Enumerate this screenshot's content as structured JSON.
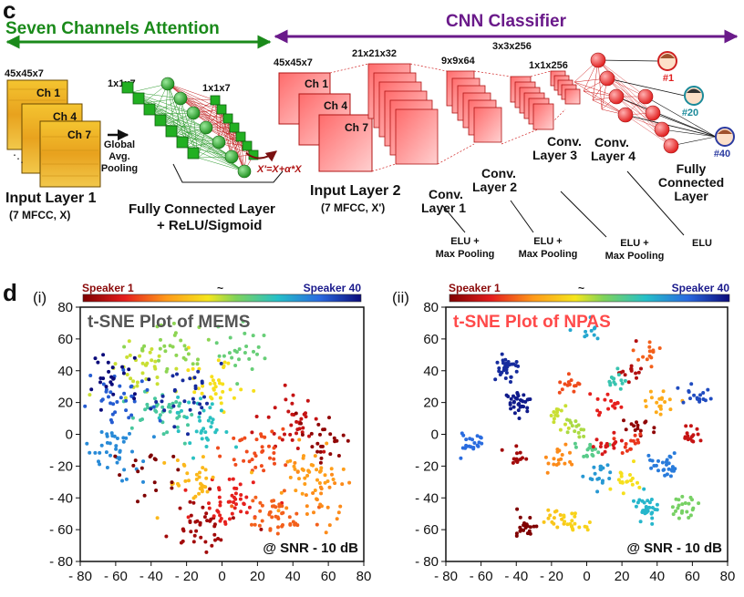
{
  "panel_c": {
    "letter": "c",
    "attention_title": "Seven Channels Attention",
    "classifier_title": "CNN Classifier",
    "input1": {
      "dims": "45x45x7",
      "channels": [
        "Ch 1",
        "Ch 4",
        "Ch 7"
      ],
      "label_line1": "Input Layer 1",
      "label_line2": "(7 MFCC, X)"
    },
    "gap": {
      "line1": "Global",
      "line2": "Avg.",
      "line3": "Pooling"
    },
    "fc_attention": {
      "dims_in": "1x1x7",
      "dims_out": "1x1x7",
      "label_line1": "Fully Connected Layer",
      "label_line2": "+ ReLU/Sigmoid"
    },
    "equation": "X'=X+α*X",
    "input2": {
      "dims": "45x45x7",
      "channels": [
        "Ch 1",
        "Ch 4",
        "Ch 7"
      ],
      "label_line1": "Input Layer 2",
      "label_line2": "(7 MFCC, X')"
    },
    "conv1": {
      "dims": "21x21x32",
      "line1": "Conv.",
      "line2": "Layer 1",
      "activation_line1": "ELU +",
      "activation_line2": "Max Pooling"
    },
    "conv2": {
      "dims": "9x9x64",
      "line1": "Conv.",
      "line2": "Layer 2",
      "activation_line1": "ELU +",
      "activation_line2": "Max Pooling"
    },
    "conv3": {
      "dims": "3x3x256",
      "line1": "Conv.",
      "line2": "Layer 3",
      "activation_line1": "ELU +",
      "activation_line2": "Max Pooling"
    },
    "conv4": {
      "dims": "1x1x256",
      "line1": "Conv.",
      "line2": "Layer 4",
      "activation": "ELU"
    },
    "fc_final": {
      "line1": "Fully",
      "line2": "Connected",
      "line3": "Layer"
    },
    "outputs": [
      "#1",
      "#20",
      "#40"
    ]
  },
  "panel_d": {
    "letter": "d",
    "colorbar_left": "Speaker 1",
    "colorbar_mid": "~",
    "colorbar_right": "Speaker 40",
    "colors": {
      "speaker1": "#8b0a0a",
      "speaker40": "#1a1a8c",
      "mems_title": "#555555",
      "npas_title": "#ff4a4a"
    }
  },
  "chart_data": [
    {
      "type": "scatter",
      "panel": "(i)",
      "title": "t-SNE Plot of MEMS",
      "annotation": "@ SNR - 10 dB",
      "xlim": [
        -80,
        80
      ],
      "ylim": [
        -80,
        80
      ],
      "xticks": [
        "- 80",
        "- 60",
        "- 40",
        "- 20",
        "0",
        "20",
        "40",
        "60",
        "80"
      ],
      "yticks": [
        "80",
        "60",
        "40",
        "20",
        "0",
        "- 20",
        "- 40",
        "- 60",
        "- 80"
      ],
      "color_scale": "speaker 1 (dark red) to speaker 40 (dark blue)",
      "clusters": [
        {
          "speaker": 3,
          "x": -10,
          "y": -58,
          "n": 40
        },
        {
          "speaker": 7,
          "x": 5,
          "y": -45,
          "n": 45
        },
        {
          "speaker": 10,
          "x": 30,
          "y": -50,
          "n": 45
        },
        {
          "speaker": 13,
          "x": 50,
          "y": -25,
          "n": 40
        },
        {
          "speaker": 5,
          "x": 40,
          "y": 8,
          "n": 35
        },
        {
          "speaker": 9,
          "x": 20,
          "y": -12,
          "n": 35
        },
        {
          "speaker": 15,
          "x": -15,
          "y": -30,
          "n": 35
        },
        {
          "speaker": 18,
          "x": -5,
          "y": 30,
          "n": 35
        },
        {
          "speaker": 20,
          "x": -45,
          "y": 40,
          "n": 35
        },
        {
          "speaker": 22,
          "x": -25,
          "y": 55,
          "n": 30
        },
        {
          "speaker": 26,
          "x": -35,
          "y": 12,
          "n": 40
        },
        {
          "speaker": 28,
          "x": -10,
          "y": 5,
          "n": 35
        },
        {
          "speaker": 32,
          "x": -60,
          "y": -10,
          "n": 40
        },
        {
          "speaker": 35,
          "x": -55,
          "y": 25,
          "n": 35
        },
        {
          "speaker": 38,
          "x": -20,
          "y": 25,
          "n": 30
        },
        {
          "speaker": 40,
          "x": -65,
          "y": 35,
          "n": 25
        },
        {
          "speaker": 2,
          "x": 58,
          "y": -2,
          "n": 25
        },
        {
          "speaker": 1,
          "x": -45,
          "y": -25,
          "n": 18
        },
        {
          "speaker": 12,
          "x": 60,
          "y": -40,
          "n": 25
        },
        {
          "speaker": 24,
          "x": 10,
          "y": 50,
          "n": 25
        }
      ]
    },
    {
      "type": "scatter",
      "panel": "(ii)",
      "title": "t-SNE Plot of NPAS",
      "annotation": "@ SNR - 10 dB",
      "xlim": [
        -80,
        80
      ],
      "ylim": [
        -80,
        80
      ],
      "xticks": [
        "- 80",
        "- 60",
        "- 40",
        "- 20",
        "0",
        "20",
        "40",
        "60",
        "80"
      ],
      "yticks": [
        "80",
        "60",
        "40",
        "20",
        "0",
        "- 20",
        "- 40",
        "- 60",
        "- 80"
      ],
      "color_scale": "speaker 1 (dark red) to speaker 40 (dark blue)",
      "clusters": [
        {
          "speaker": 38,
          "x": -45,
          "y": 40,
          "n": 30
        },
        {
          "speaker": 39,
          "x": -40,
          "y": 20,
          "n": 35
        },
        {
          "speaker": 34,
          "x": -65,
          "y": -5,
          "n": 22
        },
        {
          "speaker": 1,
          "x": -35,
          "y": -58,
          "n": 22
        },
        {
          "speaker": 3,
          "x": -40,
          "y": -15,
          "n": 14
        },
        {
          "speaker": 16,
          "x": -20,
          "y": -52,
          "n": 14
        },
        {
          "speaker": 12,
          "x": -15,
          "y": -15,
          "n": 18
        },
        {
          "speaker": 20,
          "x": -15,
          "y": 10,
          "n": 14
        },
        {
          "speaker": 25,
          "x": 0,
          "y": -10,
          "n": 16
        },
        {
          "speaker": 17,
          "x": -5,
          "y": -55,
          "n": 18
        },
        {
          "speaker": 9,
          "x": -10,
          "y": 30,
          "n": 14
        },
        {
          "speaker": 7,
          "x": 10,
          "y": 18,
          "n": 16
        },
        {
          "speaker": 4,
          "x": 25,
          "y": 40,
          "n": 14
        },
        {
          "speaker": 33,
          "x": 45,
          "y": -20,
          "n": 28
        },
        {
          "speaker": 29,
          "x": 35,
          "y": -45,
          "n": 32
        },
        {
          "speaker": 18,
          "x": 22,
          "y": -30,
          "n": 18
        },
        {
          "speaker": 23,
          "x": 55,
          "y": -45,
          "n": 22
        },
        {
          "speaker": 14,
          "x": 42,
          "y": 20,
          "n": 18
        },
        {
          "speaker": 6,
          "x": 12,
          "y": -5,
          "n": 16
        },
        {
          "speaker": 2,
          "x": 30,
          "y": 5,
          "n": 14
        },
        {
          "speaker": 36,
          "x": 62,
          "y": 25,
          "n": 18
        },
        {
          "speaker": 5,
          "x": 60,
          "y": 0,
          "n": 16
        },
        {
          "speaker": 27,
          "x": 15,
          "y": 35,
          "n": 14
        },
        {
          "speaker": 31,
          "x": 5,
          "y": -25,
          "n": 18
        },
        {
          "speaker": 10,
          "x": 35,
          "y": 50,
          "n": 14
        },
        {
          "speaker": 30,
          "x": 0,
          "y": 65,
          "n": 10
        },
        {
          "speaker": 21,
          "x": -5,
          "y": 5,
          "n": 14
        },
        {
          "speaker": 8,
          "x": 25,
          "y": -5,
          "n": 14
        }
      ]
    }
  ]
}
